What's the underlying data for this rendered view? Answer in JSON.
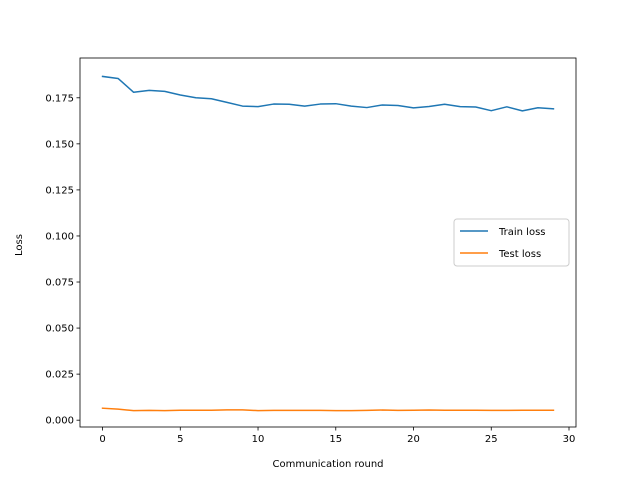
{
  "chart_data": {
    "type": "line",
    "xlabel": "Communication round",
    "ylabel": "Loss",
    "xlim": [
      -1.45,
      30.45
    ],
    "ylim": [
      -0.0037,
      0.1966
    ],
    "xticks": [
      0,
      5,
      10,
      15,
      20,
      25,
      30
    ],
    "xtick_labels": [
      "0",
      "5",
      "10",
      "15",
      "20",
      "25",
      "30"
    ],
    "yticks": [
      0.0,
      0.025,
      0.05,
      0.075,
      0.1,
      0.125,
      0.15,
      0.175
    ],
    "ytick_labels": [
      "0.000",
      "0.025",
      "0.050",
      "0.075",
      "0.100",
      "0.125",
      "0.150",
      "0.175"
    ],
    "grid": false,
    "legend_position": "center-right",
    "x": [
      0,
      1,
      2,
      3,
      4,
      5,
      6,
      7,
      8,
      9,
      10,
      11,
      12,
      13,
      14,
      15,
      16,
      17,
      18,
      19,
      20,
      21,
      22,
      23,
      24,
      25,
      26,
      27,
      28,
      29
    ],
    "series": [
      {
        "name": "Train loss",
        "color": "#1f77b4",
        "values": [
          0.1866,
          0.1855,
          0.178,
          0.179,
          0.1785,
          0.1765,
          0.175,
          0.1745,
          0.1725,
          0.1705,
          0.1702,
          0.1716,
          0.1715,
          0.1705,
          0.1716,
          0.1718,
          0.1705,
          0.1697,
          0.1711,
          0.1708,
          0.1695,
          0.1703,
          0.1715,
          0.1702,
          0.17,
          0.168,
          0.1701,
          0.1679,
          0.1696,
          0.169
        ]
      },
      {
        "name": "Test loss",
        "color": "#ff7f0e",
        "values": [
          0.0065,
          0.006,
          0.0052,
          0.0053,
          0.0052,
          0.0054,
          0.0054,
          0.0054,
          0.0056,
          0.0056,
          0.0052,
          0.0053,
          0.0053,
          0.0053,
          0.0053,
          0.0052,
          0.0052,
          0.0053,
          0.0055,
          0.0053,
          0.0054,
          0.0055,
          0.0054,
          0.0054,
          0.0054,
          0.0053,
          0.0053,
          0.0054,
          0.0054,
          0.0054
        ]
      }
    ]
  }
}
